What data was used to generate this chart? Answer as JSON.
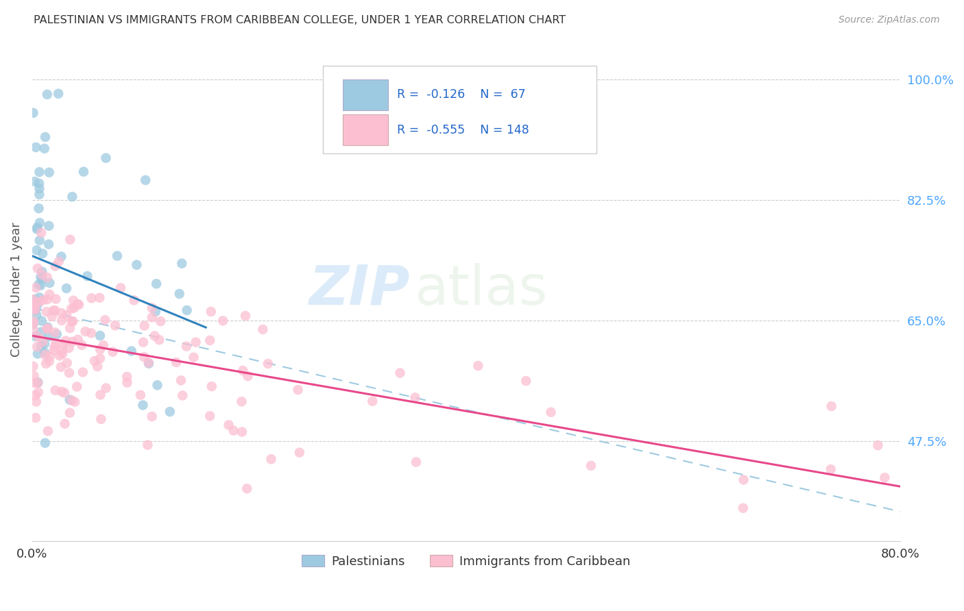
{
  "title": "PALESTINIAN VS IMMIGRANTS FROM CARIBBEAN COLLEGE, UNDER 1 YEAR CORRELATION CHART",
  "source": "Source: ZipAtlas.com",
  "ylabel": "College, Under 1 year",
  "xmin": 0.0,
  "xmax": 0.8,
  "ymin": 0.33,
  "ymax": 1.06,
  "ytick_vals": [
    0.475,
    0.65,
    0.825,
    1.0
  ],
  "ytick_labels": [
    "47.5%",
    "65.0%",
    "82.5%",
    "100.0%"
  ],
  "watermark_zip": "ZIP",
  "watermark_atlas": "atlas",
  "blue_color": "#9ecae1",
  "pink_color": "#fcbfd2",
  "blue_line_color": "#3182bd",
  "pink_line_color": "#e8488a",
  "dashed_line_color": "#9ecae1",
  "tick_color": "#4da6ff"
}
